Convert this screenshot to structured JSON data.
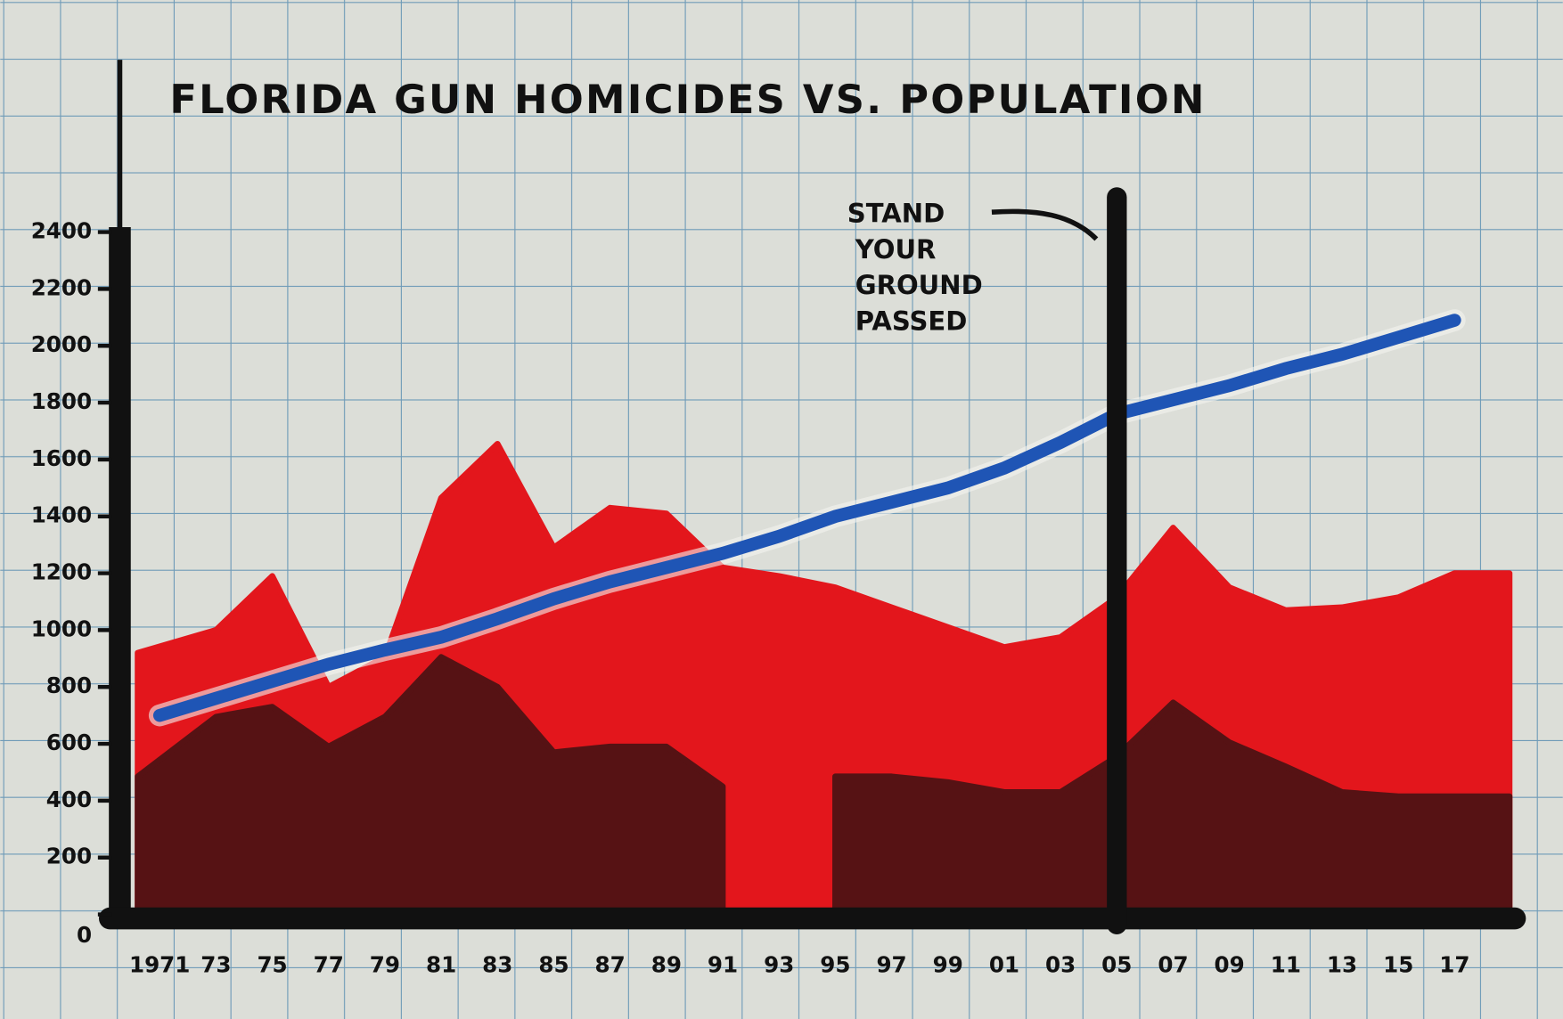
{
  "chart_data": {
    "type": "area",
    "title": "FLORIDA GUN HOMICIDES VS. POPULATION",
    "categories": [
      "1971",
      "73",
      "75",
      "77",
      "79",
      "81",
      "83",
      "85",
      "87",
      "89",
      "91",
      "93",
      "95",
      "97",
      "99",
      "01",
      "03",
      "05",
      "07",
      "09",
      "11",
      "13",
      "15",
      "17"
    ],
    "series": [
      {
        "type": "area",
        "color": "#e3161c",
        "values": [
          920,
          1000,
          1190,
          800,
          905,
          1465,
          1655,
          1290,
          1430,
          1410,
          1220,
          1190,
          1150,
          1080,
          1010,
          940,
          975,
          1115,
          1360,
          1150,
          1070,
          1080,
          1115,
          1200
        ]
      },
      {
        "type": "area",
        "color": "#561214",
        "values": [
          485,
          695,
          730,
          590,
          695,
          905,
          800,
          570,
          590,
          590,
          450,
          null,
          485,
          485,
          465,
          430,
          430,
          555,
          745,
          605,
          520,
          430,
          415,
          415
        ]
      },
      {
        "type": "line",
        "color": "#1f55b5",
        "values": [
          700,
          760,
          820,
          880,
          930,
          975,
          1040,
          1110,
          1170,
          1220,
          1270,
          1330,
          1400,
          1450,
          1500,
          1570,
          1660,
          1760,
          1810,
          1860,
          1920,
          1970,
          2030,
          2090
        ]
      }
    ],
    "ylim": [
      0,
      2400
    ],
    "yticks": [
      0,
      200,
      400,
      600,
      800,
      1000,
      1200,
      1400,
      1600,
      1800,
      2000,
      2200,
      2400
    ],
    "annotation": {
      "lines": [
        "STAND",
        "YOUR",
        "GROUND",
        "PASSED"
      ],
      "category": "05"
    }
  }
}
